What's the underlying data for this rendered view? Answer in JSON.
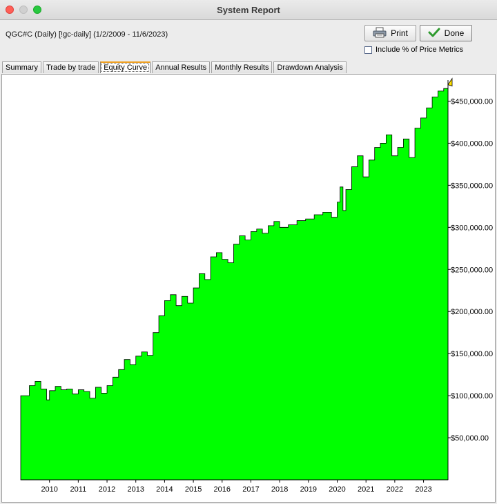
{
  "window": {
    "title": "System Report"
  },
  "header": {
    "subtitle": "QGC#C (Daily) [!gc-daily]  (1/2/2009 - 11/6/2023)"
  },
  "buttons": {
    "print_label": "Print",
    "done_label": "Done"
  },
  "options": {
    "include_pct_label": "Include % of Price Metrics",
    "include_pct_checked": false
  },
  "tabs": [
    {
      "label": "Summary"
    },
    {
      "label": "Trade by trade"
    },
    {
      "label": "Equity Curve",
      "active": true
    },
    {
      "label": "Annual Results"
    },
    {
      "label": "Monthly Results"
    },
    {
      "label": "Drawdown Analysis"
    }
  ],
  "chart_data": {
    "type": "area",
    "fill_color": "#00ff00",
    "line_color": "#000000",
    "ylim": [
      0,
      475000
    ],
    "y_ticks": [
      50000,
      100000,
      150000,
      200000,
      250000,
      300000,
      350000,
      400000,
      450000
    ],
    "y_tick_labels": [
      "$50,000.00",
      "$100,000.00",
      "$150,000.00",
      "$200,000.00",
      "$250,000.00",
      "$300,000.00",
      "$350,000.00",
      "$400,000.00",
      "$450,000.00"
    ],
    "x_range": [
      2009.0,
      2023.85
    ],
    "x_ticks": [
      2010,
      2011,
      2012,
      2013,
      2014,
      2015,
      2016,
      2017,
      2018,
      2019,
      2020,
      2021,
      2022,
      2023
    ],
    "x_tick_labels": [
      "2010",
      "2011",
      "2012",
      "2013",
      "2014",
      "2015",
      "2016",
      "2017",
      "2018",
      "2019",
      "2020",
      "2021",
      "2022",
      "2023"
    ],
    "grid": false,
    "series": [
      {
        "x": [
          2009.0,
          2009.2,
          2009.3,
          2009.5,
          2009.7,
          2009.9,
          2010.0,
          2010.2,
          2010.4,
          2010.6,
          2010.8,
          2011.0,
          2011.2,
          2011.4,
          2011.6,
          2011.8,
          2012.0,
          2012.2,
          2012.4,
          2012.6,
          2012.8,
          2013.0,
          2013.2,
          2013.4,
          2013.6,
          2013.8,
          2014.0,
          2014.2,
          2014.4,
          2014.6,
          2014.8,
          2015.0,
          2015.2,
          2015.4,
          2015.6,
          2015.8,
          2016.0,
          2016.2,
          2016.4,
          2016.6,
          2016.8,
          2017.0,
          2017.2,
          2017.4,
          2017.6,
          2017.8,
          2018.0,
          2018.3,
          2018.6,
          2018.9,
          2019.2,
          2019.5,
          2019.8,
          2020.0,
          2020.1,
          2020.2,
          2020.3,
          2020.5,
          2020.7,
          2020.9,
          2021.1,
          2021.3,
          2021.5,
          2021.7,
          2021.9,
          2022.1,
          2022.3,
          2022.5,
          2022.7,
          2022.9,
          2023.1,
          2023.3,
          2023.5,
          2023.7,
          2023.85
        ],
        "y": [
          100000,
          100000,
          112000,
          117000,
          108000,
          95000,
          106000,
          111000,
          107000,
          108000,
          102000,
          107000,
          105000,
          97000,
          110000,
          103000,
          112000,
          122000,
          131000,
          143000,
          137000,
          147000,
          152000,
          148000,
          175000,
          195000,
          213000,
          220000,
          207000,
          218000,
          210000,
          228000,
          245000,
          238000,
          265000,
          270000,
          262000,
          258000,
          280000,
          290000,
          285000,
          295000,
          298000,
          293000,
          302000,
          307000,
          300000,
          303000,
          308000,
          310000,
          315000,
          318000,
          312000,
          330000,
          348000,
          320000,
          345000,
          372000,
          385000,
          360000,
          380000,
          395000,
          400000,
          410000,
          385000,
          395000,
          405000,
          383000,
          418000,
          430000,
          442000,
          455000,
          462000,
          465000,
          472000
        ]
      }
    ]
  }
}
